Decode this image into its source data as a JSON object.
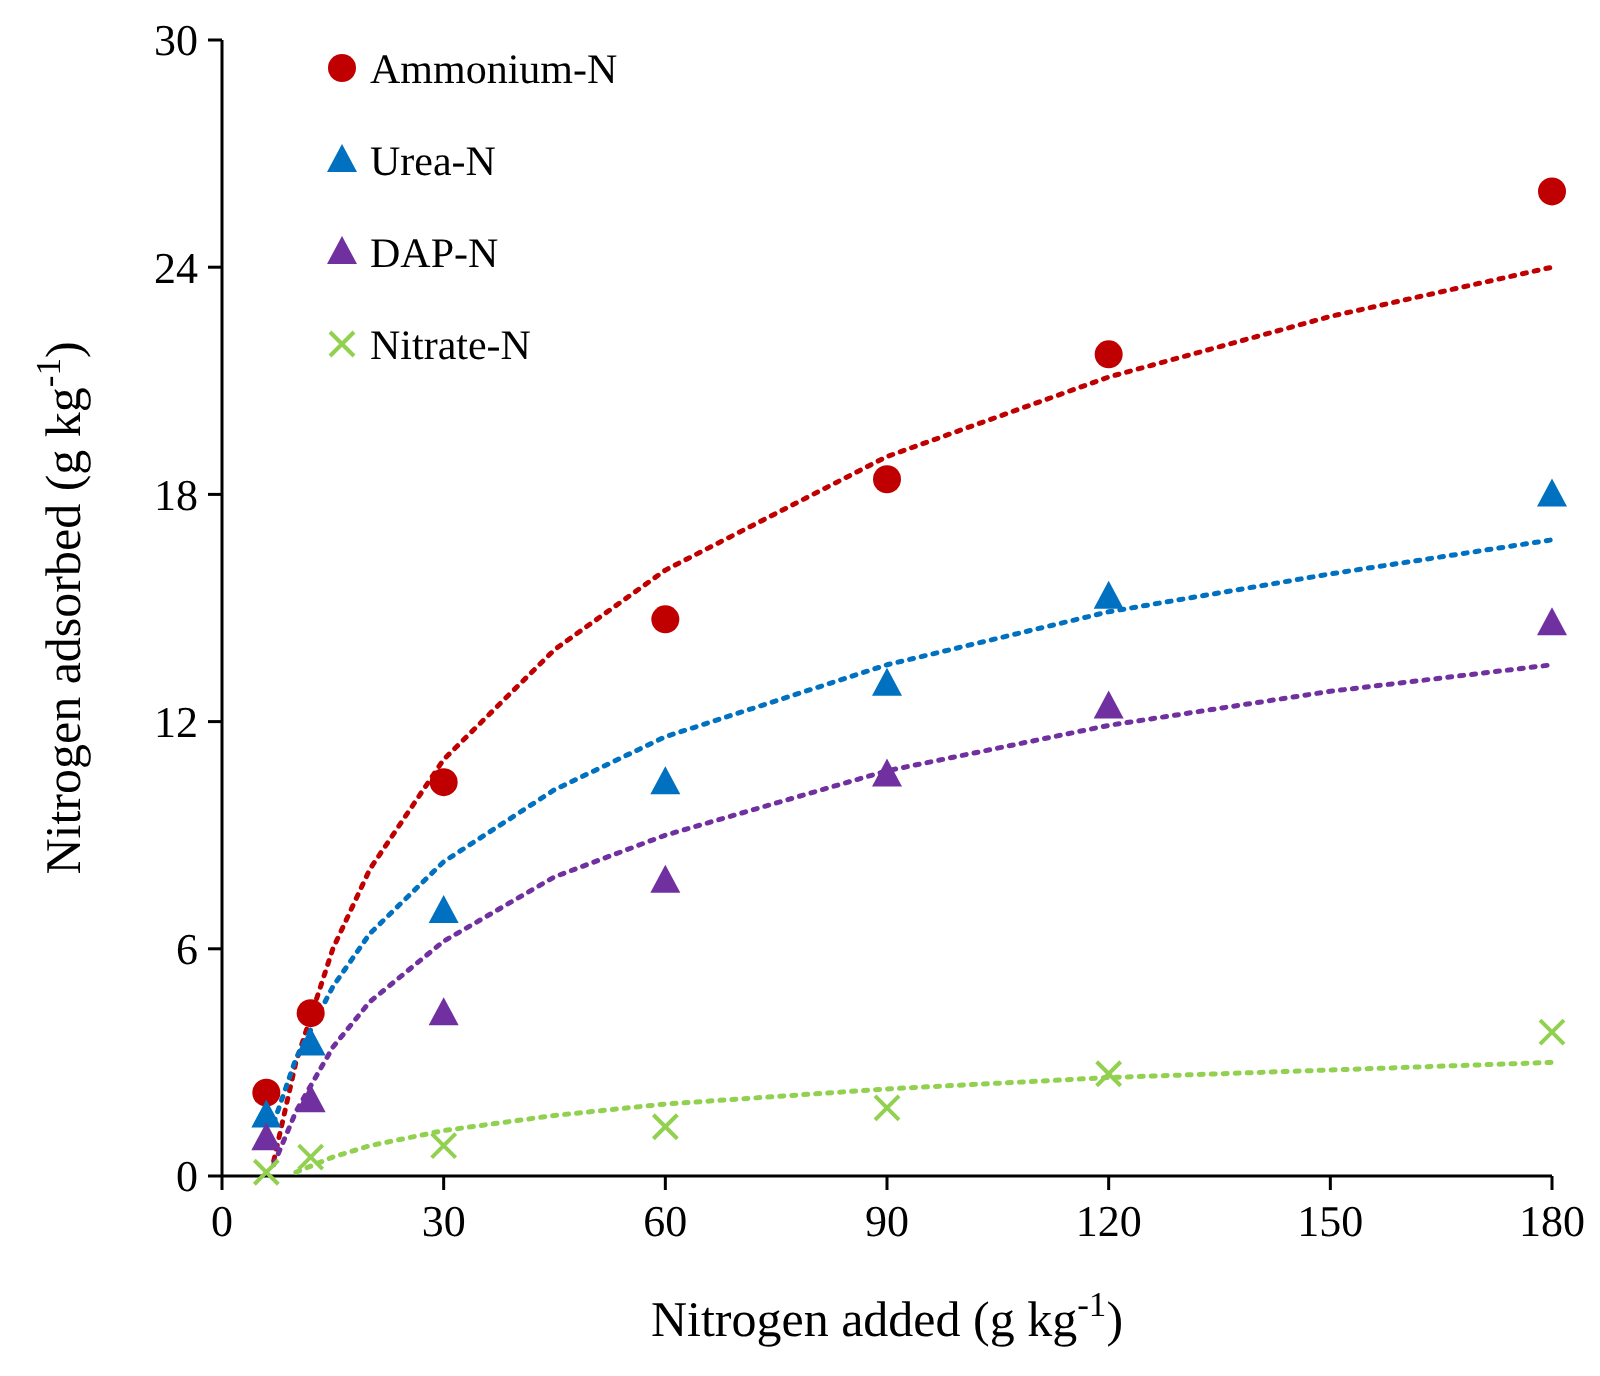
{
  "chart_data": {
    "type": "scatter",
    "xlabel": "Nitrogen added (g kg$^{-1}$)",
    "ylabel": "Nitrogen adsorbed (g kg$^{-1}$)",
    "xlim": [
      0,
      180
    ],
    "ylim": [
      0,
      30
    ],
    "xticks": [
      0,
      30,
      60,
      90,
      120,
      150,
      180
    ],
    "yticks": [
      0,
      6,
      12,
      18,
      24,
      30
    ],
    "grid": false,
    "legend": "top left",
    "x": [
      6,
      12,
      30,
      60,
      90,
      120,
      180
    ],
    "series": [
      {
        "name": "Ammonium-N",
        "marker": "circle",
        "color": "#c00000",
        "values": [
          2.2,
          4.3,
          10.4,
          14.7,
          18.4,
          21.7,
          26.0
        ]
      },
      {
        "name": "Urea-N",
        "marker": "triangle",
        "color": "#0070c0",
        "values": [
          1.6,
          3.5,
          7.0,
          10.4,
          13.0,
          15.3,
          18.0
        ]
      },
      {
        "name": "DAP-N",
        "marker": "triangle",
        "color": "#7030a0",
        "values": [
          1.0,
          2.0,
          4.3,
          7.8,
          10.6,
          12.4,
          14.6
        ]
      },
      {
        "name": "Nitrate-N",
        "marker": "cross",
        "color": "#92d050",
        "values": [
          0.1,
          0.5,
          0.8,
          1.3,
          1.8,
          2.7,
          3.8
        ]
      },
      {
        "type": "line",
        "marker": "none",
        "line_style": "dotted",
        "color": "#c00000",
        "x": [
          7,
          10,
          15,
          20,
          30,
          45,
          60,
          90,
          120,
          150,
          180
        ],
        "values": [
          0.4,
          3.0,
          6.0,
          8.1,
          11.0,
          13.9,
          16.0,
          19.0,
          21.1,
          22.7,
          24.0
        ]
      },
      {
        "type": "line",
        "marker": "none",
        "line_style": "dotted",
        "color": "#0070c0",
        "x": [
          7,
          10,
          15,
          20,
          30,
          45,
          60,
          90,
          120,
          150,
          180
        ],
        "values": [
          1.4,
          3.1,
          5.0,
          6.4,
          8.3,
          10.2,
          11.6,
          13.5,
          14.9,
          15.9,
          16.8
        ]
      },
      {
        "type": "line",
        "marker": "none",
        "line_style": "dotted",
        "color": "#7030a0",
        "x": [
          7,
          10,
          15,
          20,
          30,
          45,
          60,
          90,
          120,
          150,
          180
        ],
        "values": [
          0.3,
          1.7,
          3.4,
          4.6,
          6.2,
          7.9,
          9.0,
          10.7,
          11.9,
          12.8,
          13.5
        ]
      },
      {
        "type": "line",
        "marker": "none",
        "line_style": "dotted",
        "color": "#92d050",
        "x": [
          10,
          15,
          20,
          30,
          45,
          60,
          90,
          120,
          150,
          180
        ],
        "values": [
          0.1,
          0.5,
          0.8,
          1.2,
          1.6,
          1.9,
          2.3,
          2.6,
          2.8,
          3.0
        ]
      }
    ]
  }
}
